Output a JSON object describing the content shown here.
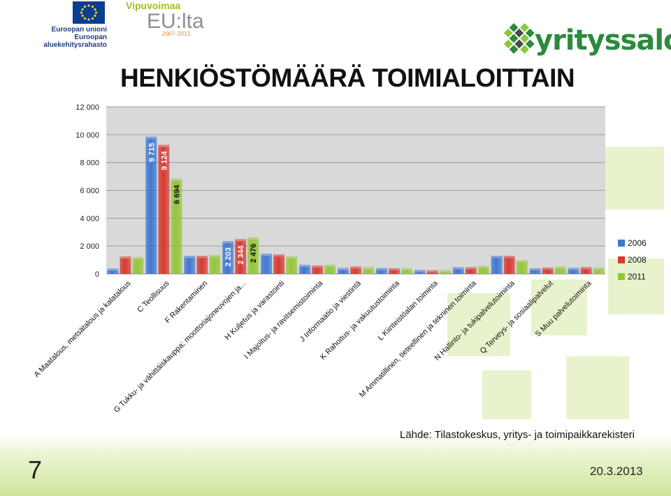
{
  "header": {
    "eu_logo_line1": "Euroopan unioni",
    "eu_logo_line2": "Euroopan aluekehitysrahasto",
    "vipuvoimaa_top": "Vipuvoimaa",
    "vipuvoimaa_main": "EU:lta",
    "vipuvoimaa_years": "2007–2013",
    "yrityssalo_logo": "yrityssalo"
  },
  "slide": {
    "title": "HENKIÖSTÖMÄÄRÄ TOIMIALOITTAIN",
    "source": "Lähde: Tilastokeskus, yritys- ja toimipaikkarekisteri",
    "number": "7",
    "date": "20.3.2013"
  },
  "colors": {
    "series_2006": "#3f78d1",
    "series_2008": "#d63a31",
    "series_2011": "#93c73a",
    "plot_area": "#d9d9d9",
    "brand_green": "#2b8a3e"
  },
  "chart_data": {
    "type": "bar",
    "title": "HENKIÖSTÖMÄÄRÄ TOIMIALOITTAIN",
    "xlabel": "",
    "ylabel": "",
    "ylim": [
      0,
      12000
    ],
    "yticks": [
      "0",
      "2 000",
      "4 000",
      "6 000",
      "8 000",
      "10 000",
      "12 000"
    ],
    "grid": true,
    "legend_position": "right",
    "categories": [
      "A Maatalous, metsätalous ja kalatalous",
      "C Teollisuus",
      "F Rakentaminen",
      "G Tukku- ja vähittäiskauppa; moottoriajoneuvojen ja...",
      "H Kuljetus ja varastointi",
      "I Majoitus- ja ravitsemistoiminta",
      "J Informaatio ja viestintä",
      "K Rahoitus- ja vakuutustoiminta",
      "L Kiinteistöalan toiminta",
      "M Ammatillinen, tieteellinen ja tekninen toiminta",
      "N Hallinto- ja tukipalvelutoiminta",
      "Q Terveys- ja sosiaalipalvelut",
      "S Muu palvelutoiminta"
    ],
    "series": [
      {
        "name": "2006",
        "values": [
          230,
          9715,
          1150,
          2203,
          1300,
          500,
          270,
          270,
          130,
          330,
          1150,
          250,
          280
        ]
      },
      {
        "name": "2008",
        "values": [
          1100,
          9124,
          1150,
          2344,
          1250,
          450,
          380,
          250,
          110,
          330,
          1150,
          300,
          340
        ]
      },
      {
        "name": "2011",
        "values": [
          1050,
          6694,
          1200,
          2476,
          1100,
          500,
          340,
          250,
          130,
          420,
          830,
          380,
          280
        ]
      }
    ],
    "data_labels": [
      {
        "category": 1,
        "series": 0,
        "text": "9 715"
      },
      {
        "category": 1,
        "series": 1,
        "text": "9 124"
      },
      {
        "category": 1,
        "series": 2,
        "text": "6 694"
      },
      {
        "category": 3,
        "series": 0,
        "text": "2 203"
      },
      {
        "category": 3,
        "series": 1,
        "text": "2 344"
      },
      {
        "category": 3,
        "series": 2,
        "text": "2 476"
      }
    ]
  }
}
